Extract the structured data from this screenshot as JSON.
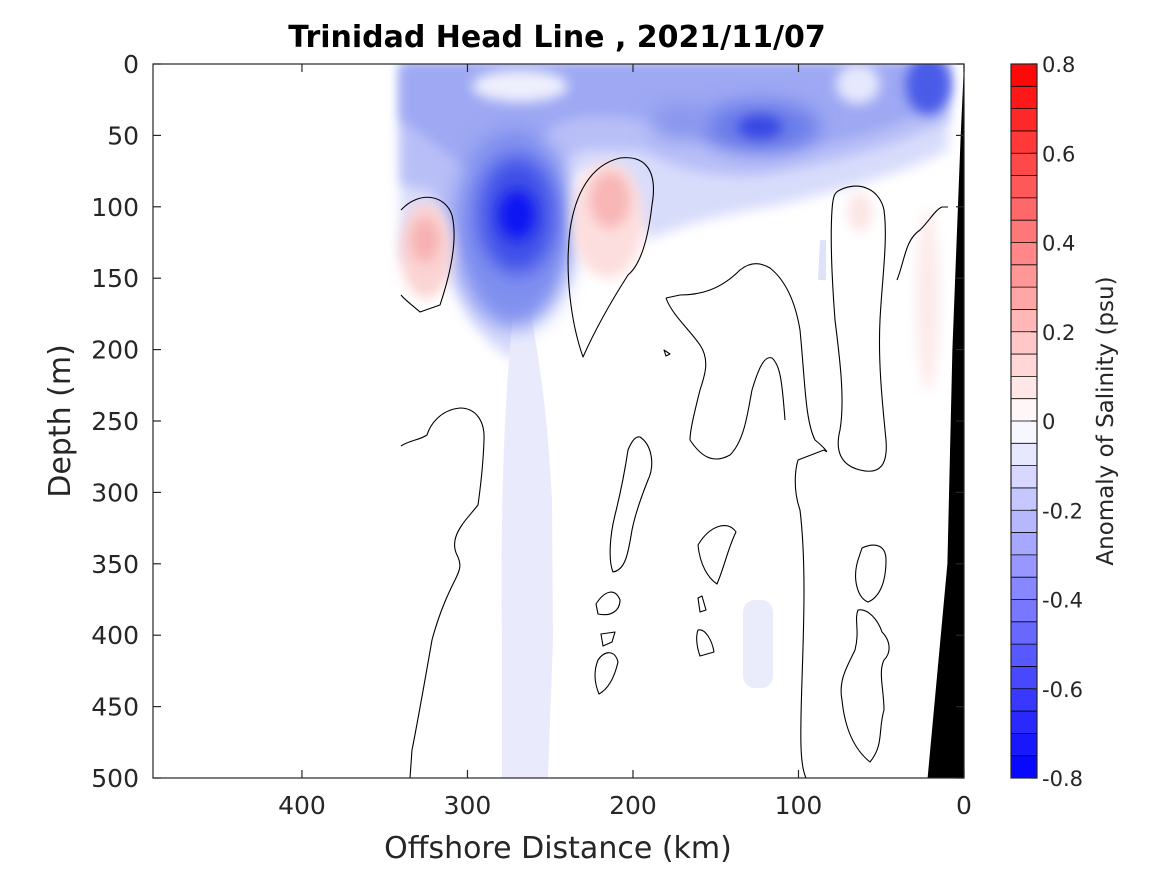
{
  "chart_data": {
    "type": "heatmap",
    "title": "Trinidad Head Line , 2021/11/07",
    "xlabel": "Offshore Distance (km)",
    "ylabel": "Depth (m)",
    "xlim": [
      490,
      0
    ],
    "ylim": [
      0,
      500
    ],
    "xticks": [
      400,
      300,
      200,
      100,
      0
    ],
    "yticks": [
      0,
      50,
      100,
      150,
      200,
      250,
      300,
      350,
      400,
      450,
      500
    ],
    "colorbar": {
      "label": "Anomaly of Salinity (psu)",
      "range": [
        -0.8,
        0.8
      ],
      "step": 0.05,
      "ticks": [
        0.8,
        0.6,
        0.4,
        0.2,
        0,
        -0.2,
        -0.4,
        -0.6,
        -0.8
      ],
      "tick_labels": [
        "0.8",
        "0.6",
        "0.4",
        "0.2",
        "0",
        "-0.2",
        "-0.4",
        "-0.6",
        "-0.8"
      ],
      "colormap": "blue-white-red",
      "colors": {
        "negative": "#0000ff",
        "zero": "#ffffff",
        "positive": "#ff0000"
      }
    },
    "data_extent_km": [
      340,
      0
    ],
    "features": [
      {
        "kind": "fresh_anomaly",
        "x_km": 270,
        "depth_m": 110,
        "value": -0.6
      },
      {
        "kind": "fresh_anomaly",
        "x_km": 125,
        "depth_m": 45,
        "value": -0.45
      },
      {
        "kind": "fresh_anomaly",
        "x_km": 20,
        "depth_m": 15,
        "value": -0.5
      },
      {
        "kind": "salty_anomaly",
        "x_km": 325,
        "depth_m": 125,
        "value": 0.2
      },
      {
        "kind": "salty_anomaly",
        "x_km": 215,
        "depth_m": 95,
        "value": 0.22
      },
      {
        "kind": "salty_anomaly",
        "x_km": 65,
        "depth_m": 105,
        "value": 0.05
      },
      {
        "kind": "salty_anomaly",
        "x_km": 20,
        "depth_m": 220,
        "value": 0.05
      }
    ],
    "zero_contour_color": "#000000",
    "seafloor_color": "#000000",
    "seafloor": [
      [
        0,
        0
      ],
      [
        2,
        50
      ],
      [
        7,
        200
      ],
      [
        10,
        350
      ],
      [
        22,
        500
      ]
    ]
  }
}
